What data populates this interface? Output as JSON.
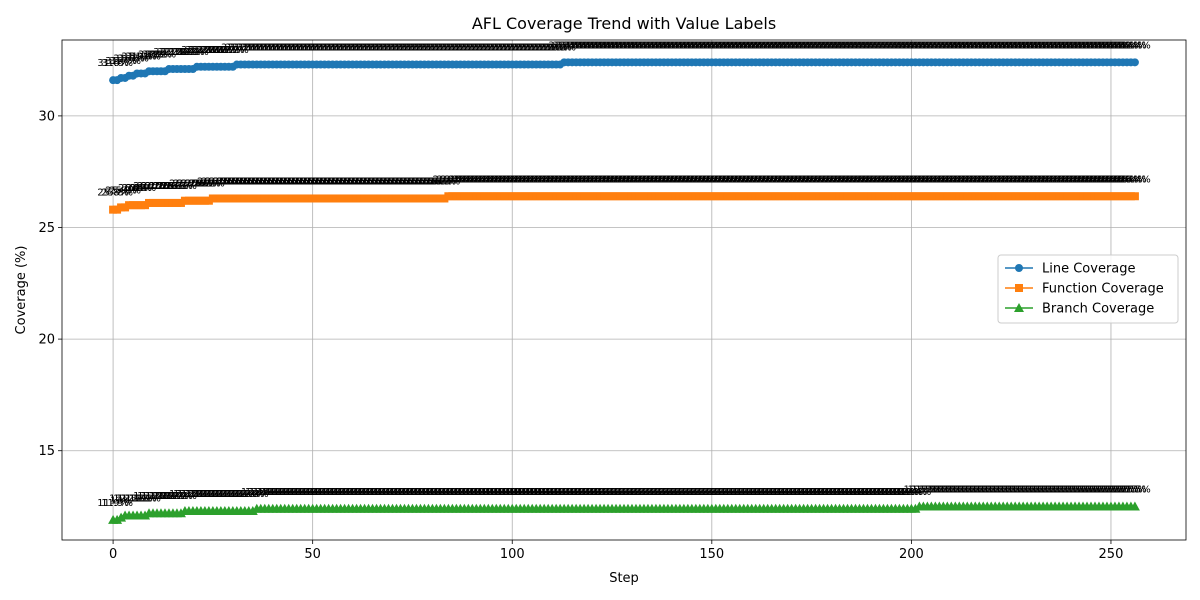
{
  "chart_data": {
    "type": "line",
    "title": "AFL Coverage Trend with Value Labels",
    "xlabel": "Step",
    "ylabel": "Coverage (%)",
    "xlim": [
      -12.8,
      268.8
    ],
    "ylim": [
      11.0,
      33.4
    ],
    "xticks": [
      0,
      50,
      100,
      150,
      200,
      250
    ],
    "yticks": [
      15,
      20,
      25,
      30
    ],
    "grid": true,
    "legend_position": "center-right",
    "value_label_format": "{v}%",
    "series": [
      {
        "name": "Line Coverage",
        "color": "#1f77b4",
        "marker": "circle",
        "points": [
          [
            0,
            31.6
          ],
          [
            2,
            31.7
          ],
          [
            4,
            31.8
          ],
          [
            6,
            31.9
          ],
          [
            9,
            32.0
          ],
          [
            14,
            32.1
          ],
          [
            21,
            32.2
          ],
          [
            31,
            32.3
          ],
          [
            113,
            32.4
          ],
          [
            256,
            32.4
          ]
        ]
      },
      {
        "name": "Function Coverage",
        "color": "#ff7f0e",
        "marker": "square",
        "points": [
          [
            0,
            25.8
          ],
          [
            2,
            25.9
          ],
          [
            4,
            26.0
          ],
          [
            9,
            26.1
          ],
          [
            18,
            26.2
          ],
          [
            25,
            26.3
          ],
          [
            84,
            26.4
          ],
          [
            256,
            26.4
          ]
        ]
      },
      {
        "name": "Branch Coverage",
        "color": "#2ca02c",
        "marker": "triangle",
        "points": [
          [
            0,
            11.9
          ],
          [
            2,
            12.0
          ],
          [
            3,
            12.1
          ],
          [
            9,
            12.2
          ],
          [
            18,
            12.3
          ],
          [
            36,
            12.4
          ],
          [
            202,
            12.5
          ],
          [
            256,
            12.5
          ]
        ]
      }
    ]
  }
}
